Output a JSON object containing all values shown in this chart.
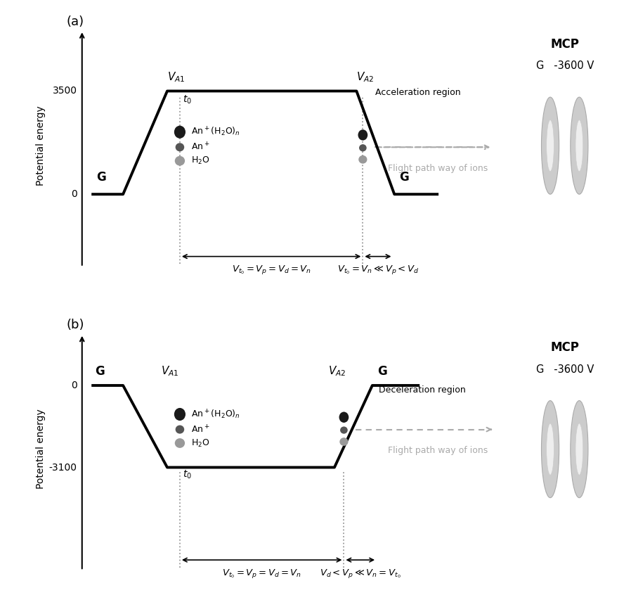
{
  "panel_a": {
    "label": "(a)",
    "tick_3500": "3500",
    "tick_0": "0",
    "region_label": "Acceleration region",
    "formula_left": "$V_{t_0} = V_p = V_d = V_n$",
    "formula_right": "$V_{t_0} = V_n\\ll V_p<V_d$",
    "t0_label": "$t_0$",
    "ion1": "An$^+$(H$_2$O)$_n$",
    "ion2": "An$^+$",
    "ion3": "H$_2$O",
    "mcp_label": "MCP",
    "G_label": "G",
    "G_voltage": "G   -3600 V",
    "flight_path": "Flight path way of ions",
    "VA1": "$V_{A1}$",
    "VA2": "$V_{A2}$",
    "G_left": "G",
    "G_right": "G"
  },
  "panel_b": {
    "label": "(b)",
    "tick_neg3100": "-3100",
    "tick_0": "0",
    "region_label": "Deceleration region",
    "formula_left": "$V_{t_0}=V_p=V_d=V_n$",
    "formula_right": "$V_d < V_p \\ll V_n = V_{t_0}$",
    "t0_label": "$t_0$",
    "ion1": "An$^+$(H$_2$O)$_n$",
    "ion2": "An$^+$",
    "ion3": "H$_2$O",
    "mcp_label": "MCP",
    "G_voltage": "G   -3600 V",
    "flight_path": "Flight path way of ions",
    "VA1": "$V_{A1}$",
    "VA2": "$V_{A2}$",
    "G_left": "G",
    "G_right": "G"
  },
  "ylabel": "Potential energy",
  "bg_color": "#ffffff",
  "line_color": "#000000",
  "text_color": "#000000",
  "gray_arrow": "#aaaaaa",
  "dot_color": "#999999"
}
